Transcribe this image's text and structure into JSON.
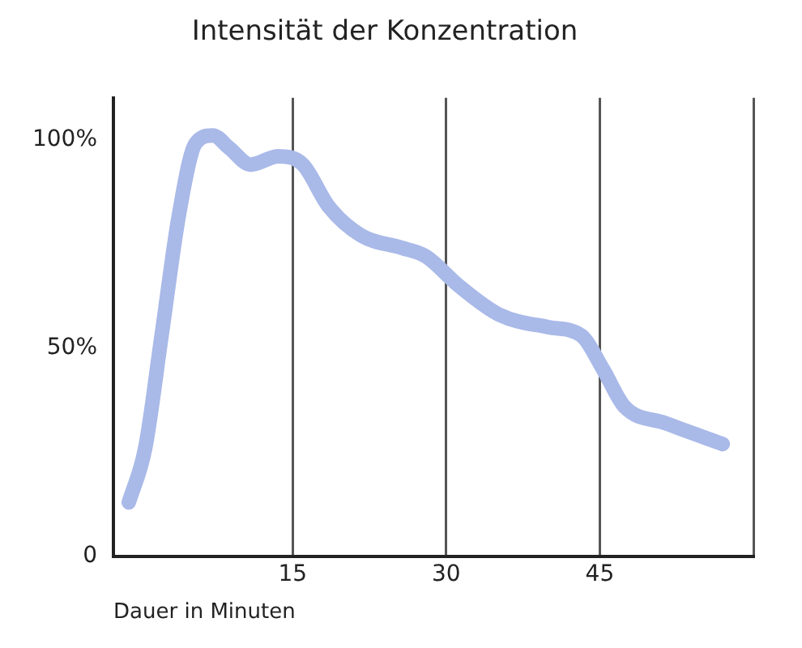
{
  "chart_data": {
    "type": "line",
    "title": "Intensität der Konzentration",
    "xlabel": "Dauer in Minuten",
    "x": [
      -1,
      0.6,
      2.2,
      3.9,
      5.5,
      7.2,
      8.8,
      10.9,
      13.6,
      16,
      18.5,
      21.7,
      25.7,
      28,
      31.2,
      35.2,
      40,
      43.2,
      45.3,
      47.4,
      51.4,
      57
    ],
    "series": [
      {
        "color": "#a9b9e8",
        "values": [
          13,
          26,
          53,
          82,
          99,
          101,
          98,
          94,
          96,
          94,
          84,
          77,
          74,
          72,
          65,
          58,
          55,
          53,
          45,
          36,
          32,
          27
        ]
      }
    ],
    "xlim": [
      -2.5,
      60
    ],
    "xticks": [
      15,
      30,
      45,
      {
        "value": 60,
        "label": null
      }
    ],
    "ylim": [
      0,
      110
    ],
    "yticks": [
      {
        "value": 0,
        "label": "0"
      },
      {
        "value": 50,
        "label": "50%"
      },
      {
        "value": 100,
        "label": "100%"
      }
    ],
    "grid": "x",
    "legend": false,
    "marker": "none",
    "line_style": "solid"
  }
}
